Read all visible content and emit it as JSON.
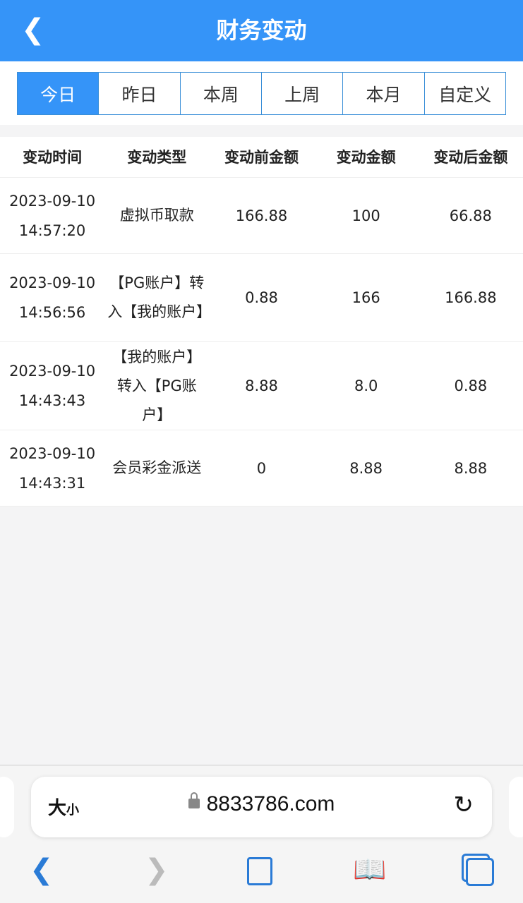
{
  "header": {
    "title": "财务变动",
    "back_icon": "chevron-left-icon"
  },
  "tabs": [
    {
      "label": "今日",
      "active": true
    },
    {
      "label": "昨日"
    },
    {
      "label": "本周"
    },
    {
      "label": "上周"
    },
    {
      "label": "本月"
    },
    {
      "label": "自定义"
    }
  ],
  "table": {
    "columns": [
      "变动时间",
      "变动类型",
      "变动前金额",
      "变动金额",
      "变动后金额"
    ],
    "rows": [
      {
        "date": "2023-09-10",
        "time": "14:57:20",
        "type": "虚拟币取款",
        "before": "166.88",
        "amount": "100",
        "after": "66.88"
      },
      {
        "date": "2023-09-10",
        "time": "14:56:56",
        "type": "【PG账户】转入【我的账户】",
        "before": "0.88",
        "amount": "166",
        "after": "166.88"
      },
      {
        "date": "2023-09-10",
        "time": "14:43:43",
        "type": "【我的账户】转入【PG账户】",
        "before": "8.88",
        "amount": "8.0",
        "after": "0.88"
      },
      {
        "date": "2023-09-10",
        "time": "14:43:31",
        "type": "会员彩金派送",
        "before": "0",
        "amount": "8.88",
        "after": "8.88"
      }
    ]
  },
  "browser": {
    "text_size_big": "大",
    "text_size_small": "小",
    "url": "8833786.com"
  },
  "colors": {
    "accent": "#3594f8",
    "toolbar_icon": "#2a7bd6"
  }
}
